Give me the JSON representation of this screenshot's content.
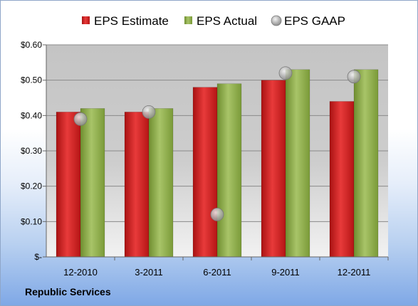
{
  "company_label": "Republic Services",
  "colors": {
    "estimate": "#d42020",
    "actual": "#8fb04a",
    "gaap": "#a8a8a8"
  },
  "chart_data": {
    "type": "bar",
    "categories": [
      "12-2010",
      "3-2011",
      "6-2011",
      "9-2011",
      "12-2011"
    ],
    "series": [
      {
        "name": "EPS Estimate",
        "kind": "bar",
        "values": [
          0.41,
          0.41,
          0.48,
          0.5,
          0.44
        ]
      },
      {
        "name": "EPS Actual",
        "kind": "bar",
        "values": [
          0.42,
          0.42,
          0.49,
          0.53,
          0.53
        ]
      },
      {
        "name": "EPS GAAP",
        "kind": "marker",
        "values": [
          0.39,
          0.41,
          0.12,
          0.52,
          0.51
        ]
      }
    ],
    "ylim": [
      0,
      0.6
    ],
    "yticks": [
      {
        "value": 0,
        "label": "$-"
      },
      {
        "value": 0.1,
        "label": "$0.10"
      },
      {
        "value": 0.2,
        "label": "$0.20"
      },
      {
        "value": 0.3,
        "label": "$0.30"
      },
      {
        "value": 0.4,
        "label": "$0.40"
      },
      {
        "value": 0.5,
        "label": "$0.50"
      },
      {
        "value": 0.6,
        "label": "$0.60"
      }
    ],
    "grid": true,
    "legend_position": "top"
  }
}
